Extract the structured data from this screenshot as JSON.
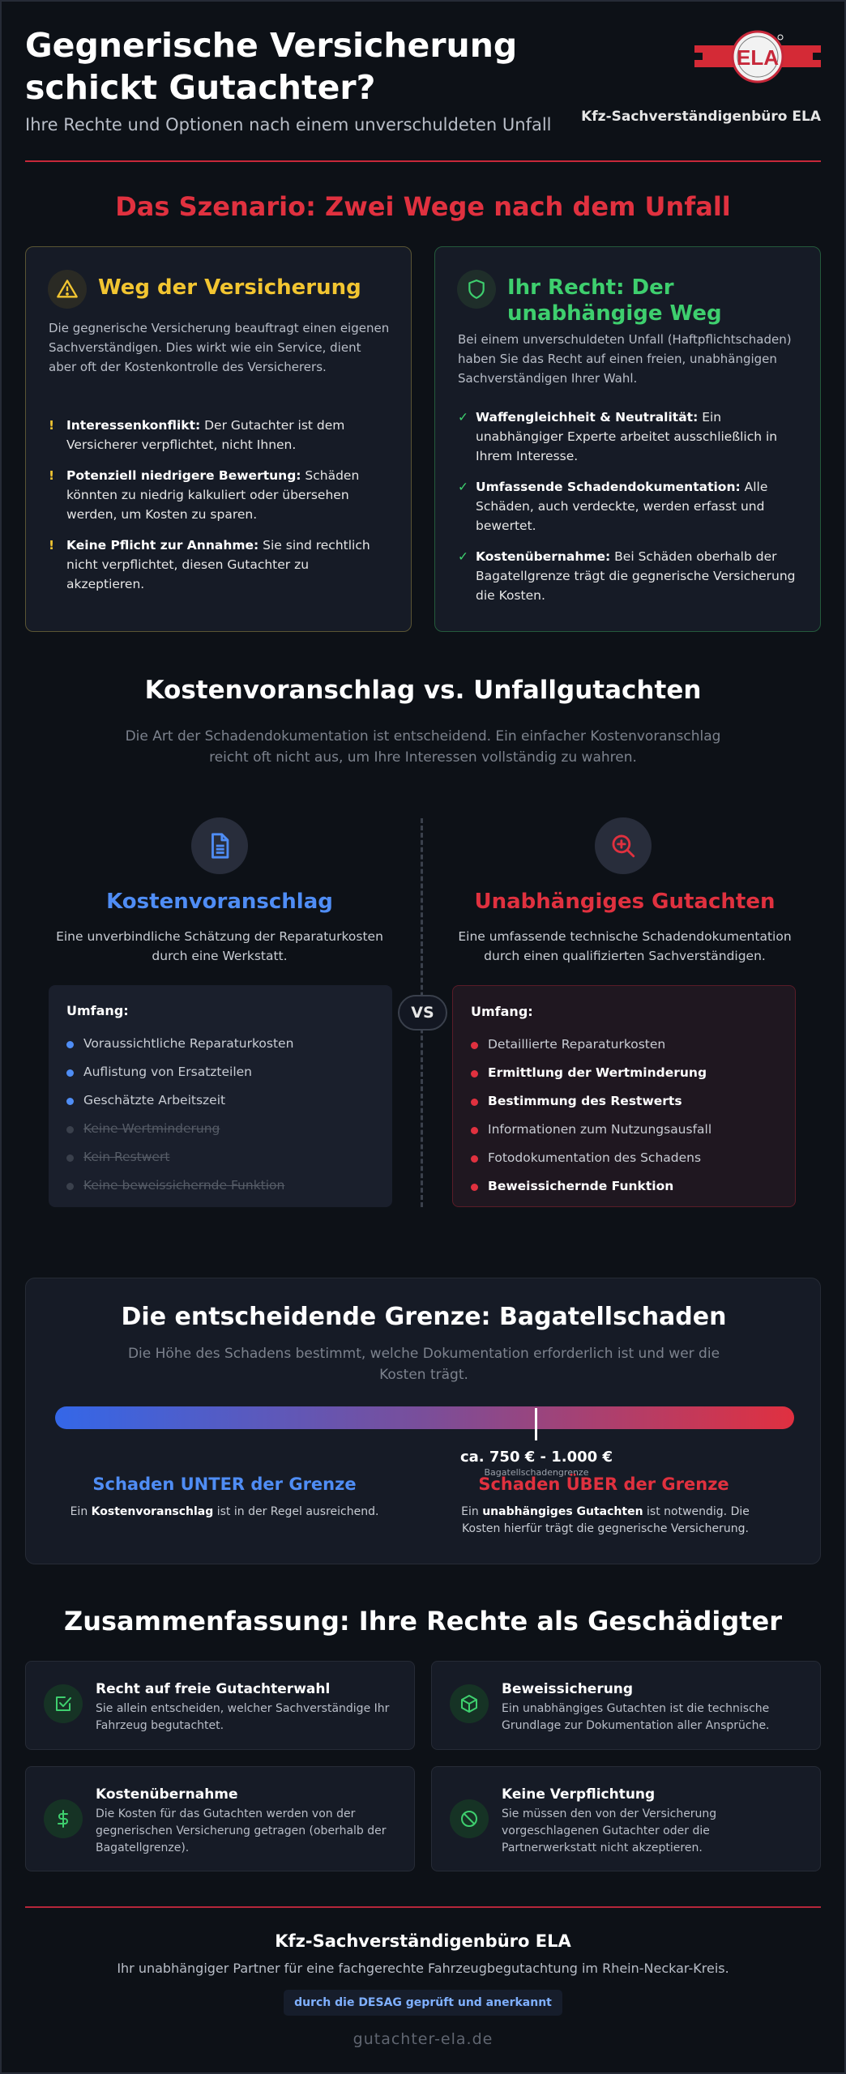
{
  "colors": {
    "background": "#0d1117",
    "accent_red": "#e0313f",
    "warning_yellow": "#f2c531",
    "success_green": "#3ecf6e",
    "info_blue": "#4f8df5"
  },
  "header": {
    "title": "Gegnerische Versicherung schickt Gutachter?",
    "subtitle": "Ihre Rechte und Optionen nach einem unverschuldeten Unfall",
    "brand": "Kfz-Sachverständigenbüro ELA",
    "logo_text": "ELA"
  },
  "scenario": {
    "title": "Das Szenario: Zwei Wege nach dem Unfall",
    "insurer": {
      "icon": "warning-triangle-icon",
      "heading": "Weg der Versicherung",
      "description": "Die gegnerische Versicherung beauftragt einen eigenen Sachverständigen. Dies wirkt wie ein Service, dient aber oft der Kostenkontrolle des Versicherers.",
      "points": [
        {
          "marker": "!",
          "bold": "Interessenkonflikt:",
          "text": " Der Gutachter ist dem Versicherer verpflichtet, nicht Ihnen."
        },
        {
          "marker": "!",
          "bold": "Potenziell niedrigere Bewertung:",
          "text": " Schäden könnten zu niedrig kalkuliert oder übersehen werden, um Kosten zu sparen."
        },
        {
          "marker": "!",
          "bold": "Keine Pflicht zur Annahme:",
          "text": " Sie sind rechtlich nicht verpflichtet, diesen Gutachter zu akzeptieren."
        }
      ]
    },
    "right": {
      "icon": "shield-icon",
      "heading": "Ihr Recht: Der unabhängige Weg",
      "description": "Bei einem unverschuldeten Unfall (Haftpflichtschaden) haben Sie das Recht auf einen freien, unabhängigen Sachverständigen Ihrer Wahl.",
      "points": [
        {
          "marker": "✓",
          "bold": "Waffengleichheit & Neutralität:",
          "text": " Ein unabhängiger Experte arbeitet ausschließlich in Ihrem Interesse."
        },
        {
          "marker": "✓",
          "bold": "Umfassende Schadendokumentation:",
          "text": " Alle Schäden, auch verdeckte, werden erfasst und bewertet."
        },
        {
          "marker": "✓",
          "bold": "Kostenübernahme:",
          "text": " Bei Schäden oberhalb der Bagatellgrenze trägt die gegnerische Versicherung die Kosten."
        }
      ]
    }
  },
  "comparison": {
    "title": "Kostenvoranschlag vs. Unfallgutachten",
    "intro": "Die Art der Schadendokumentation ist entscheidend. Ein einfacher Kostenvoranschlag reicht oft nicht aus, um Ihre Interessen vollständig zu wahren.",
    "vs": "VS",
    "left": {
      "icon": "document-icon",
      "heading": "Kostenvoranschlag",
      "description": "Eine unverbindliche Schätzung der Reparaturkosten durch eine Werkstatt.",
      "scope_label": "Umfang:",
      "items": [
        {
          "text": "Voraussichtliche Reparaturkosten",
          "state": "normal"
        },
        {
          "text": "Auflistung von Ersatzteilen",
          "state": "normal"
        },
        {
          "text": "Geschätzte Arbeitszeit",
          "state": "normal"
        },
        {
          "text": "Keine Wertminderung",
          "state": "strike"
        },
        {
          "text": "Kein Restwert",
          "state": "strike"
        },
        {
          "text": "Keine beweissichernde Funktion",
          "state": "strike"
        }
      ]
    },
    "right": {
      "icon": "magnifier-plus-icon",
      "heading": "Unabhängiges Gutachten",
      "description": "Eine umfassende technische Schadendokumentation durch einen qualifizierten Sachverständigen.",
      "scope_label": "Umfang:",
      "items": [
        {
          "text": "Detaillierte Reparaturkosten",
          "state": "normal"
        },
        {
          "text": "Ermittlung der Wertminderung",
          "state": "strong"
        },
        {
          "text": "Bestimmung des Restwerts",
          "state": "strong"
        },
        {
          "text": "Informationen zum Nutzungsausfall",
          "state": "normal"
        },
        {
          "text": "Fotodokumentation des Schadens",
          "state": "normal"
        },
        {
          "text": "Beweissichernde Funktion",
          "state": "strong"
        }
      ]
    }
  },
  "threshold": {
    "title": "Die entscheidende Grenze: Bagatellschaden",
    "intro": "Die Höhe des Schadens bestimmt, welche Dokumentation erforderlich ist und wer die Kosten trägt.",
    "marker_fraction": 0.65,
    "amount": "ca. 750 € - 1.000 €",
    "amount_label": "Bagatellschadengrenze",
    "below": {
      "heading": "Schaden UNTER der Grenze",
      "pre": "Ein ",
      "bold": "Kostenvoranschlag",
      "post": " ist in der Regel ausreichend."
    },
    "above": {
      "heading": "Schaden ÜBER der Grenze",
      "pre": "Ein ",
      "bold": "unabhängiges Gutachten",
      "post": " ist notwendig. Die Kosten hierfür trägt die gegnerische Versicherung."
    }
  },
  "summary": {
    "title": "Zusammenfassung: Ihre Rechte als Geschädigter",
    "items": [
      {
        "icon": "checkbox-icon",
        "heading": "Recht auf freie Gutachterwahl",
        "text": "Sie allein entscheiden, welcher Sachverständige Ihr Fahrzeug begutachtet."
      },
      {
        "icon": "box-icon",
        "heading": "Beweissicherung",
        "text": "Ein unabhängiges Gutachten ist die technische Grundlage zur Dokumentation aller Ansprüche."
      },
      {
        "icon": "dollar-icon",
        "heading": "Kostenübernahme",
        "text": "Die Kosten für das Gutachten werden von der gegnerischen Versicherung getragen (oberhalb der Bagatellgrenze)."
      },
      {
        "icon": "no-entry-icon",
        "heading": "Keine Verpflichtung",
        "text": "Sie müssen den von der Versicherung vorgeschlagenen Gutachter oder die Partnerwerkstatt nicht akzeptieren."
      }
    ]
  },
  "footer": {
    "brand": "Kfz-Sachverständigenbüro ELA",
    "tagline": "Ihr unabhängiger Partner für eine fachgerechte Fahrzeugbegutachtung im Rhein-Neckar-Kreis.",
    "badge": "durch die DESAG geprüft und anerkannt",
    "url": "gutachter-ela.de"
  }
}
